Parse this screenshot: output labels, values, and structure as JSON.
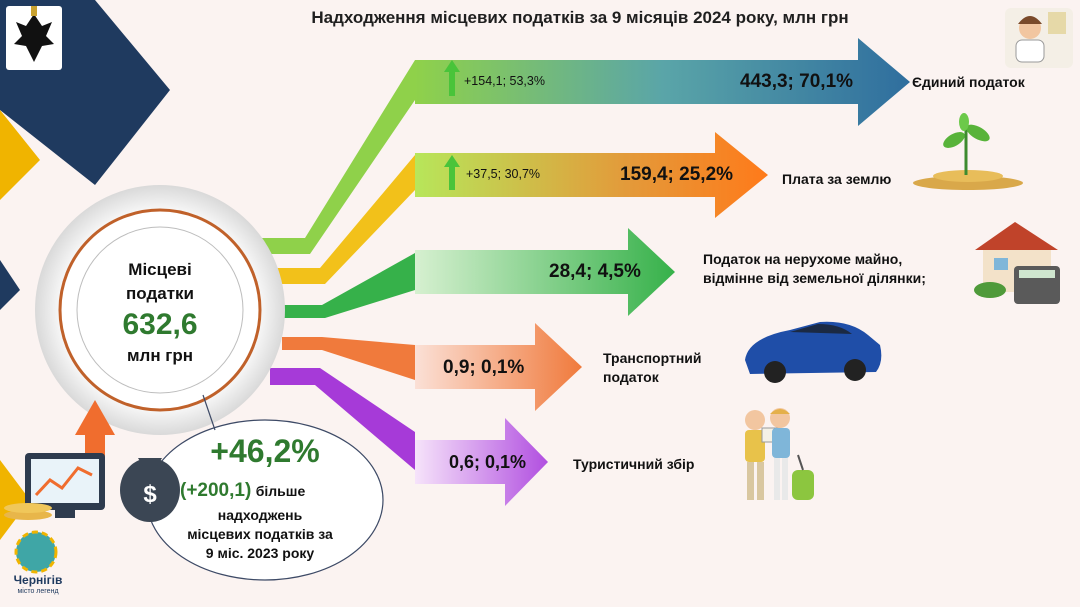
{
  "title": "Надходження місцевих податків за 9 місяців 2024 року, млн грн",
  "center": {
    "line1": "Місцеві",
    "line2": "податки",
    "total": "632,6",
    "unit": "млн грн"
  },
  "growth": {
    "percent": "+46,2%",
    "abs": "(+200,1)",
    "text1": "більше",
    "text2": "надходжень",
    "text3": "місцевих податків за",
    "text4": "9 міс. 2023 року"
  },
  "taxes": [
    {
      "value": "443,3; 70,1%",
      "change": "+154,1; 53,3%",
      "label": "Єдиний податок"
    },
    {
      "value": "159,4; 25,2%",
      "change": "+37,5; 30,7%",
      "label": "Плата за землю"
    },
    {
      "value": "28,4; 4,5%",
      "label1": "Податок на нерухоме майно,",
      "label2": "відмінне від земельної ділянки;"
    },
    {
      "value": "0,9; 0,1%",
      "label1": "Транспортний",
      "label2": "податок"
    },
    {
      "value": "0,6; 0,1%",
      "label": "Туристичний збір"
    }
  ],
  "logo": {
    "city": "Чернігів",
    "tagline": "місто легенд"
  },
  "colors": {
    "navy": "#1f3a5f",
    "orange": "#f0b400",
    "green": "#5cbf3a",
    "red": "#c0392b",
    "purple": "#a63ad8"
  }
}
